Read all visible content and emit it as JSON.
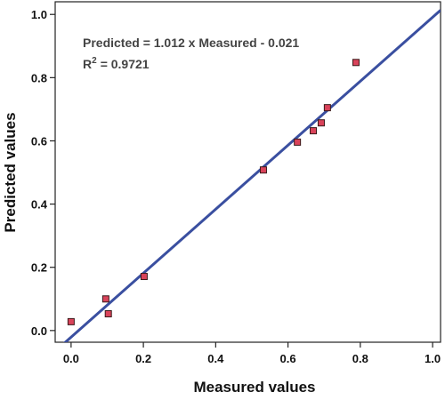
{
  "chart_data": {
    "type": "scatter",
    "x_label": "Measured values",
    "y_label": "Predicted values",
    "annotations": [
      "Predicted = 1.012 x Measured - 0.021",
      "R",
      "2",
      "= 0.9721"
    ],
    "x": [
      0.0,
      0.096,
      0.103,
      0.202,
      0.532,
      0.626,
      0.67,
      0.692,
      0.709,
      0.788
    ],
    "values": [
      0.028,
      0.1,
      0.053,
      0.171,
      0.508,
      0.596,
      0.632,
      0.657,
      0.705,
      0.848
    ],
    "color": "#d9435a",
    "fit": {
      "slope": 1.012,
      "intercept": -0.021,
      "color": "#3a4fa0"
    },
    "xlim": [
      -0.044,
      1.022
    ],
    "ylim": [
      -0.037,
      1.04
    ],
    "xticks": [
      {
        "value": 0,
        "label": "0.0"
      },
      0.2,
      0.4,
      0.6,
      0.8,
      {
        "value": 1,
        "label": "1.0"
      }
    ],
    "yticks": [
      {
        "value": 0,
        "label": "0.0"
      },
      0.2,
      0.4,
      0.6,
      0.8,
      {
        "value": 1,
        "label": "1.0"
      }
    ]
  }
}
